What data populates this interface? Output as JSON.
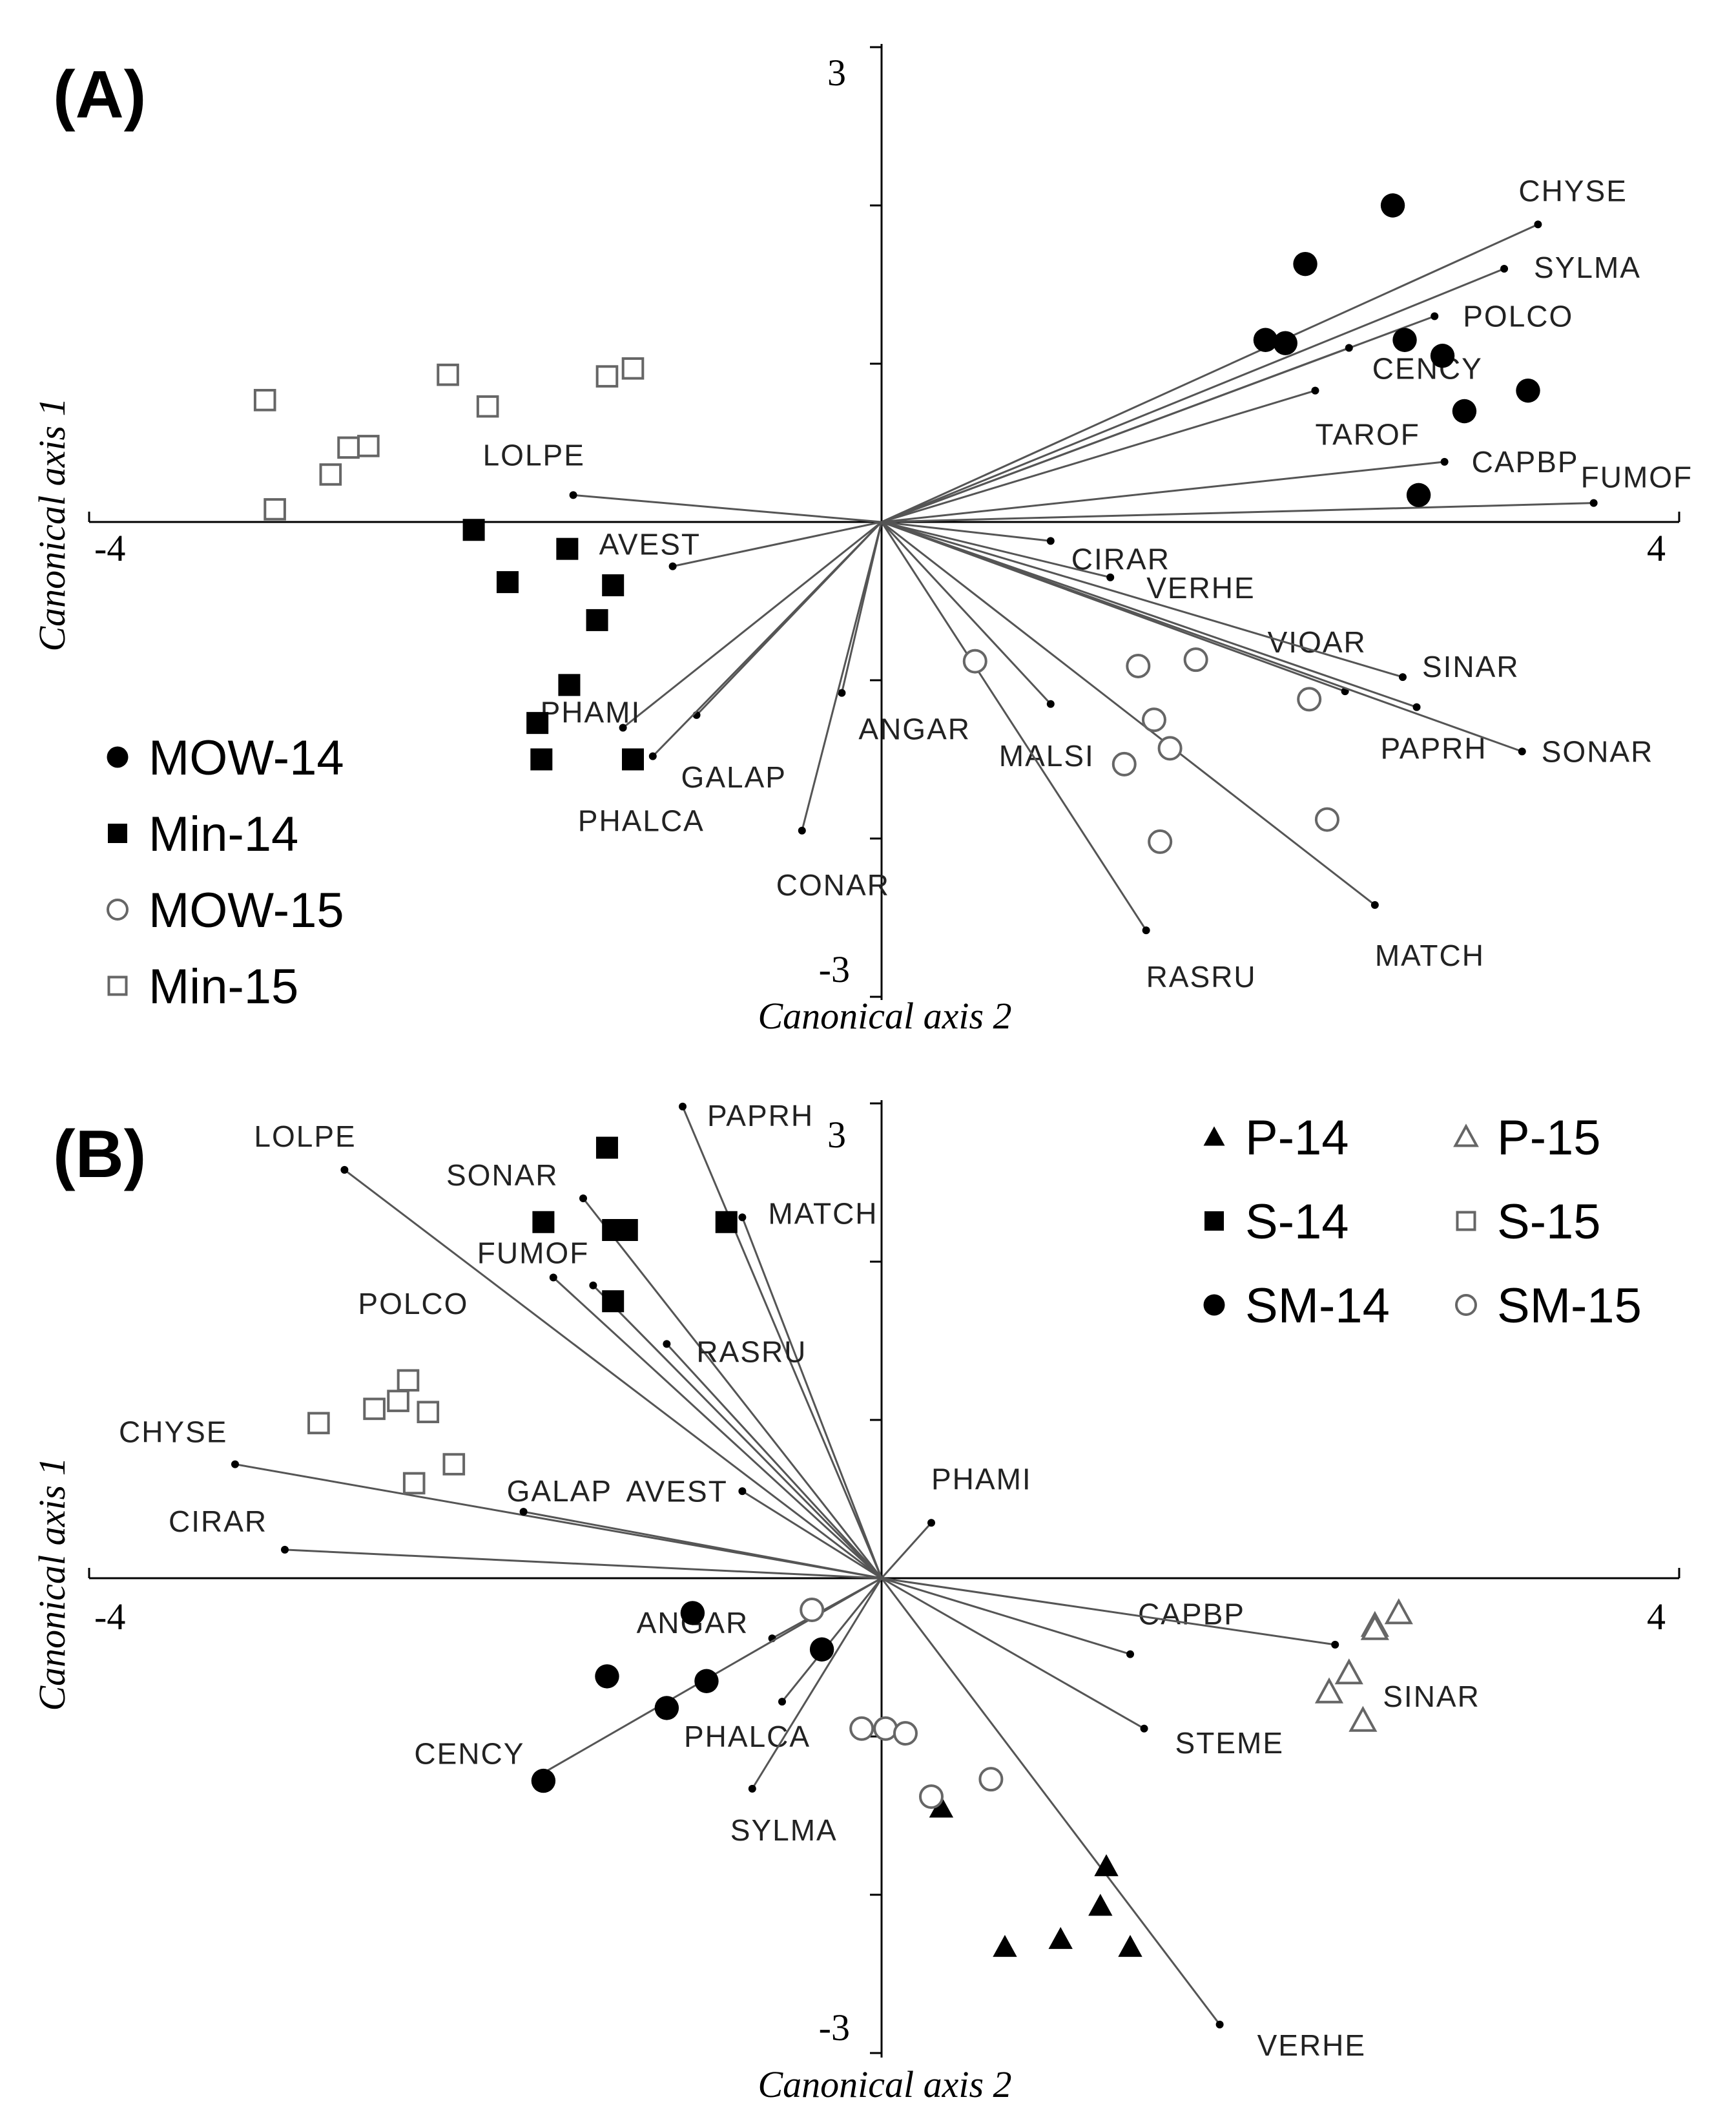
{
  "chart_data": [
    {
      "type": "scatter",
      "panel_label": "(A)",
      "xlabel": "Canonical axis 2",
      "ylabel": "Canonical axis 1",
      "xlim": [
        -4,
        4
      ],
      "ylim": [
        -3,
        3
      ],
      "tick_labels": {
        "xmin": "-4",
        "xmax": "4",
        "ymin": "-3",
        "ymax": "3"
      },
      "legend_position": "bottom-left",
      "series": [
        {
          "name": "MOW-14",
          "marker": "filled-circle",
          "points": [
            [
              2.57,
              2.0
            ],
            [
              2.13,
              1.63
            ],
            [
              1.93,
              1.15
            ],
            [
              2.03,
              1.13
            ],
            [
              2.63,
              1.15
            ],
            [
              2.82,
              1.05
            ],
            [
              2.93,
              0.7
            ],
            [
              3.25,
              0.83
            ],
            [
              2.7,
              0.17
            ]
          ]
        },
        {
          "name": "Min-14",
          "marker": "filled-square",
          "points": [
            [
              -2.05,
              -0.05
            ],
            [
              -1.58,
              -0.17
            ],
            [
              -1.88,
              -0.38
            ],
            [
              -1.35,
              -0.4
            ],
            [
              -1.43,
              -0.62
            ],
            [
              -1.57,
              -1.03
            ],
            [
              -1.73,
              -1.27
            ],
            [
              -1.71,
              -1.5
            ],
            [
              -1.25,
              -1.5
            ]
          ]
        },
        {
          "name": "MOW-15",
          "marker": "open-circle",
          "points": [
            [
              0.47,
              -0.88
            ],
            [
              1.29,
              -0.91
            ],
            [
              1.58,
              -0.87
            ],
            [
              2.15,
              -1.12
            ],
            [
              1.37,
              -1.25
            ],
            [
              1.45,
              -1.43
            ],
            [
              1.22,
              -1.53
            ],
            [
              2.24,
              -1.88
            ],
            [
              1.4,
              -2.02
            ]
          ]
        },
        {
          "name": "Min-15",
          "marker": "open-square",
          "points": [
            [
              -3.1,
              0.77
            ],
            [
              -3.05,
              0.08
            ],
            [
              -2.77,
              0.3
            ],
            [
              -2.68,
              0.47
            ],
            [
              -2.58,
              0.48
            ],
            [
              -2.18,
              0.93
            ],
            [
              -1.98,
              0.73
            ],
            [
              -1.38,
              0.92
            ],
            [
              -1.25,
              0.97
            ]
          ]
        }
      ],
      "vectors": [
        {
          "name": "CHYSE",
          "x": 3.3,
          "y": 1.88
        },
        {
          "name": "SYLMA",
          "x": 3.13,
          "y": 1.6
        },
        {
          "name": "POLCO",
          "x": 2.78,
          "y": 1.3
        },
        {
          "name": "CENCY",
          "x": 2.35,
          "y": 1.1
        },
        {
          "name": "TAROF",
          "x": 2.18,
          "y": 0.83
        },
        {
          "name": "CAPBP",
          "x": 2.83,
          "y": 0.38
        },
        {
          "name": "FUMOF",
          "x": 3.58,
          "y": 0.12
        },
        {
          "name": "CIRAR",
          "x": 0.85,
          "y": -0.12
        },
        {
          "name": "VERHE",
          "x": 1.15,
          "y": -0.35
        },
        {
          "name": "VIOAR",
          "x": 2.33,
          "y": -1.07
        },
        {
          "name": "SINAR",
          "x": 2.62,
          "y": -0.98
        },
        {
          "name": "PAPRH",
          "x": 2.69,
          "y": -1.17
        },
        {
          "name": "SONAR",
          "x": 3.22,
          "y": -1.45
        },
        {
          "name": "MALSI",
          "x": 0.85,
          "y": -1.15
        },
        {
          "name": "ANGAR",
          "x": -0.2,
          "y": -1.08
        },
        {
          "name": "CONAR",
          "x": -0.4,
          "y": -1.95
        },
        {
          "name": "RASRU",
          "x": 1.33,
          "y": -2.58
        },
        {
          "name": "MATCH",
          "x": 2.48,
          "y": -2.42
        },
        {
          "name": "LOLPE",
          "x": -1.55,
          "y": 0.17
        },
        {
          "name": "AVEST",
          "x": -1.05,
          "y": -0.28
        },
        {
          "name": "PHAMI",
          "x": -1.3,
          "y": -1.3
        },
        {
          "name": "GALAP",
          "x": -0.93,
          "y": -1.22
        },
        {
          "name": "PHALCA",
          "x": -1.15,
          "y": -1.48
        }
      ]
    },
    {
      "type": "scatter",
      "panel_label": "(B)",
      "xlabel": "Canonical axis 2",
      "ylabel": "Canonical axis 1",
      "xlim": [
        -4,
        4
      ],
      "ylim": [
        -3,
        3
      ],
      "tick_labels": {
        "xmin": "-4",
        "xmax": "4",
        "ymin": "-3",
        "ymax": "3"
      },
      "legend_position": "top-right",
      "series": [
        {
          "name": "P-14",
          "marker": "filled-triangle",
          "points": [
            [
              0.3,
              -1.45
            ],
            [
              1.13,
              -1.82
            ],
            [
              1.1,
              -2.07
            ],
            [
              1.25,
              -2.33
            ],
            [
              0.9,
              -2.28
            ],
            [
              0.62,
              -2.33
            ]
          ]
        },
        {
          "name": "S-14",
          "marker": "filled-square",
          "points": [
            [
              -1.38,
              2.72
            ],
            [
              -1.7,
              2.25
            ],
            [
              -1.35,
              2.2
            ],
            [
              -1.28,
              2.2
            ],
            [
              -0.78,
              2.25
            ],
            [
              -1.35,
              1.75
            ]
          ]
        },
        {
          "name": "SM-14",
          "marker": "filled-circle",
          "points": [
            [
              -0.95,
              -0.22
            ],
            [
              -0.3,
              -0.45
            ],
            [
              -0.88,
              -0.65
            ],
            [
              -1.38,
              -0.62
            ],
            [
              -1.08,
              -0.82
            ],
            [
              -1.7,
              -1.28
            ]
          ]
        },
        {
          "name": "P-15",
          "marker": "open-triangle",
          "points": [
            [
              2.6,
              -0.22
            ],
            [
              2.48,
              -0.3
            ],
            [
              2.48,
              -0.32
            ],
            [
              2.35,
              -0.6
            ],
            [
              2.25,
              -0.72
            ],
            [
              2.42,
              -0.9
            ]
          ]
        },
        {
          "name": "S-15",
          "marker": "open-square",
          "points": [
            [
              -2.38,
              1.25
            ],
            [
              -2.28,
              1.05
            ],
            [
              -2.43,
              1.12
            ],
            [
              -2.55,
              1.07
            ],
            [
              -2.83,
              0.98
            ],
            [
              -2.15,
              0.72
            ],
            [
              -2.35,
              0.6
            ]
          ]
        },
        {
          "name": "SM-15",
          "marker": "open-circle",
          "points": [
            [
              -0.35,
              -0.2
            ],
            [
              -0.1,
              -0.95
            ],
            [
              0.02,
              -0.95
            ],
            [
              0.12,
              -0.98
            ],
            [
              0.25,
              -1.38
            ],
            [
              0.55,
              -1.27
            ]
          ]
        }
      ],
      "vectors": [
        {
          "name": "LOLPE",
          "x": -2.7,
          "y": 2.58
        },
        {
          "name": "PAPRH",
          "x": -1.0,
          "y": 2.98
        },
        {
          "name": "SONAR",
          "x": -1.5,
          "y": 2.4
        },
        {
          "name": "MATCH",
          "x": -0.7,
          "y": 2.28
        },
        {
          "name": "FUMOF",
          "x": -1.65,
          "y": 1.9
        },
        {
          "name": "RASRU",
          "x": -1.08,
          "y": 1.48
        },
        {
          "name": "POLCO",
          "x": -1.45,
          "y": 1.85
        },
        {
          "name": "CHYSE",
          "x": -3.25,
          "y": 0.72
        },
        {
          "name": "GALAP",
          "x": -1.8,
          "y": 0.42
        },
        {
          "name": "AVEST",
          "x": -0.7,
          "y": 0.55
        },
        {
          "name": "CIRAR",
          "x": -3.0,
          "y": 0.18
        },
        {
          "name": "PHAMI",
          "x": 0.25,
          "y": 0.35
        },
        {
          "name": "CAPBP",
          "x": 1.25,
          "y": -0.48
        },
        {
          "name": "SINAR",
          "x": 2.28,
          "y": -0.42
        },
        {
          "name": "STEME",
          "x": 1.32,
          "y": -0.95
        },
        {
          "name": "VERHE",
          "x": 1.7,
          "y": -2.82
        },
        {
          "name": "ANGAR",
          "x": -0.55,
          "y": -0.38
        },
        {
          "name": "PHALCA",
          "x": -0.5,
          "y": -0.78
        },
        {
          "name": "CENCY",
          "x": -1.7,
          "y": -1.23
        },
        {
          "name": "SYLMA",
          "x": -0.65,
          "y": -1.33
        }
      ]
    }
  ]
}
